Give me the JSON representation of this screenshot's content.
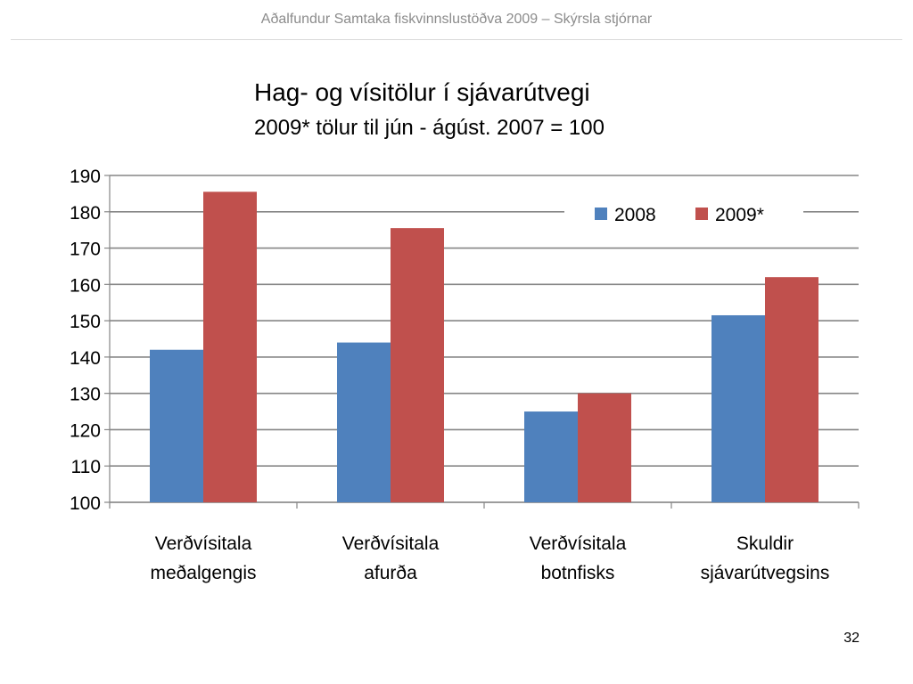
{
  "header": {
    "title": "Aðalfundur Samtaka fiskvinnslustöðva 2009 – Skýrsla stjórnar"
  },
  "page_number": "32",
  "chart_data": {
    "type": "bar",
    "title": "Hag- og vísitölur í sjávarútvegi",
    "subtitle": "2009* tölur til jún - ágúst.  2007 = 100",
    "categories": [
      [
        "Verðvísitala",
        "meðalgengis"
      ],
      [
        "Verðvísitala",
        "afurða"
      ],
      [
        "Verðvísitala",
        "botnfisks"
      ],
      [
        "Skuldir",
        "sjávarútvegsins"
      ]
    ],
    "series": [
      {
        "name": "2008",
        "color": "#4f81bd",
        "values": [
          142,
          144,
          125,
          151.5
        ]
      },
      {
        "name": "2009*",
        "color": "#c0504d",
        "values": [
          185.5,
          175.5,
          130,
          162
        ]
      }
    ],
    "ylim": [
      100,
      190
    ],
    "yticks": [
      100,
      110,
      120,
      130,
      140,
      150,
      160,
      170,
      180,
      190
    ],
    "grid": true,
    "legend_position": "top-right"
  }
}
